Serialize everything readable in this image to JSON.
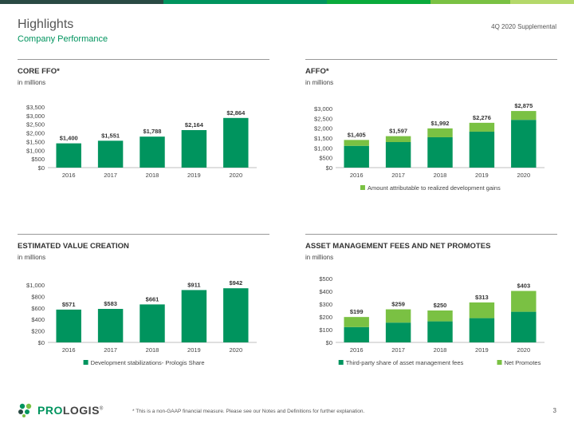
{
  "header": {
    "title": "Highlights",
    "subtitle": "Company Performance",
    "supplement": "4Q 2020 Supplemental",
    "bar_colors": [
      "#2a4a44",
      "#00945e",
      "#0aaa3c",
      "#7ac143",
      "#b4d86a"
    ]
  },
  "colors": {
    "dark_green": "#00945e",
    "light_green": "#7ac143",
    "axis": "#bfbfbf"
  },
  "panels": {
    "core_ffo": {
      "title": "CORE FFO*",
      "unit": "in millions"
    },
    "affo": {
      "title": "AFFO*",
      "unit": "in millions"
    },
    "value_creation": {
      "title": "ESTIMATED VALUE CREATION",
      "unit": "in millions"
    },
    "asset_mgmt": {
      "title": "ASSET MANAGEMENT FEES AND NET PROMOTES",
      "unit": "in millions"
    }
  },
  "chart_data": [
    {
      "id": "core_ffo",
      "type": "bar",
      "categories": [
        "2016",
        "2017",
        "2018",
        "2019",
        "2020"
      ],
      "series": [
        {
          "values": [
            1400,
            1551,
            1788,
            2164,
            2864
          ],
          "color": "#00945e"
        }
      ],
      "data_labels": [
        "$1,400",
        "$1,551",
        "$1,788",
        "$2,164",
        "$2,864"
      ],
      "y_ticks": [
        "$0",
        "$500",
        "$1,000",
        "$1,500",
        "$2,000",
        "$2,500",
        "$3,000",
        "$3,500"
      ],
      "ylim": [
        0,
        3500
      ],
      "legend": []
    },
    {
      "id": "affo",
      "type": "bar",
      "stacked": true,
      "categories": [
        "2016",
        "2017",
        "2018",
        "2019",
        "2020"
      ],
      "series": [
        {
          "values": [
            1105,
            1297,
            1542,
            1826,
            2425
          ],
          "color": "#00945e"
        },
        {
          "name": "Amount attributable to realized development gains",
          "values": [
            300,
            300,
            450,
            450,
            450
          ],
          "color": "#7ac143"
        }
      ],
      "data_labels": [
        "$1,405",
        "$1,597",
        "$1,992",
        "$2,276",
        "$2,875"
      ],
      "y_ticks": [
        "$0",
        "$500",
        "$1,000",
        "$1,500",
        "$2,000",
        "$2,500",
        "$3,000"
      ],
      "ylim": [
        0,
        3000
      ],
      "legend": [
        "Amount attributable to realized development gains"
      ],
      "legend_colors": [
        "#7ac143"
      ]
    },
    {
      "id": "value_creation",
      "type": "bar",
      "categories": [
        "2016",
        "2017",
        "2018",
        "2019",
        "2020"
      ],
      "series": [
        {
          "name": "Development stabilizations- Prologis Share",
          "values": [
            571,
            583,
            661,
            911,
            942
          ],
          "color": "#00945e"
        }
      ],
      "data_labels": [
        "$571",
        "$583",
        "$661",
        "$911",
        "$942"
      ],
      "y_ticks": [
        "$0",
        "$200",
        "$400",
        "$600",
        "$800",
        "$1,000"
      ],
      "ylim": [
        0,
        1000
      ],
      "legend": [
        "Development stabilizations- Prologis Share"
      ],
      "legend_colors": [
        "#00945e"
      ]
    },
    {
      "id": "asset_mgmt",
      "type": "bar",
      "stacked": true,
      "categories": [
        "2016",
        "2017",
        "2018",
        "2019",
        "2020"
      ],
      "series": [
        {
          "name": "Third-party share of asset management fees",
          "values": [
            120,
            155,
            165,
            190,
            240
          ],
          "color": "#00945e"
        },
        {
          "name": "Net Promotes",
          "values": [
            79,
            104,
            85,
            123,
            163
          ],
          "color": "#7ac143"
        }
      ],
      "data_labels": [
        "$199",
        "$259",
        "$250",
        "$313",
        "$403"
      ],
      "y_ticks": [
        "$0",
        "$100",
        "$200",
        "$300",
        "$400",
        "$500"
      ],
      "ylim": [
        0,
        500
      ],
      "legend": [
        "Third-party share of asset management fees",
        "Net Promotes"
      ],
      "legend_colors": [
        "#00945e",
        "#7ac143"
      ]
    }
  ],
  "footer": {
    "logo_text_pro": "PRO",
    "logo_text_logis": "LOGIS",
    "logo_reg": "®",
    "note": "* This is a non-GAAP financial measure. Please see our Notes and Definitions for further explanation.",
    "page_number": "3"
  }
}
